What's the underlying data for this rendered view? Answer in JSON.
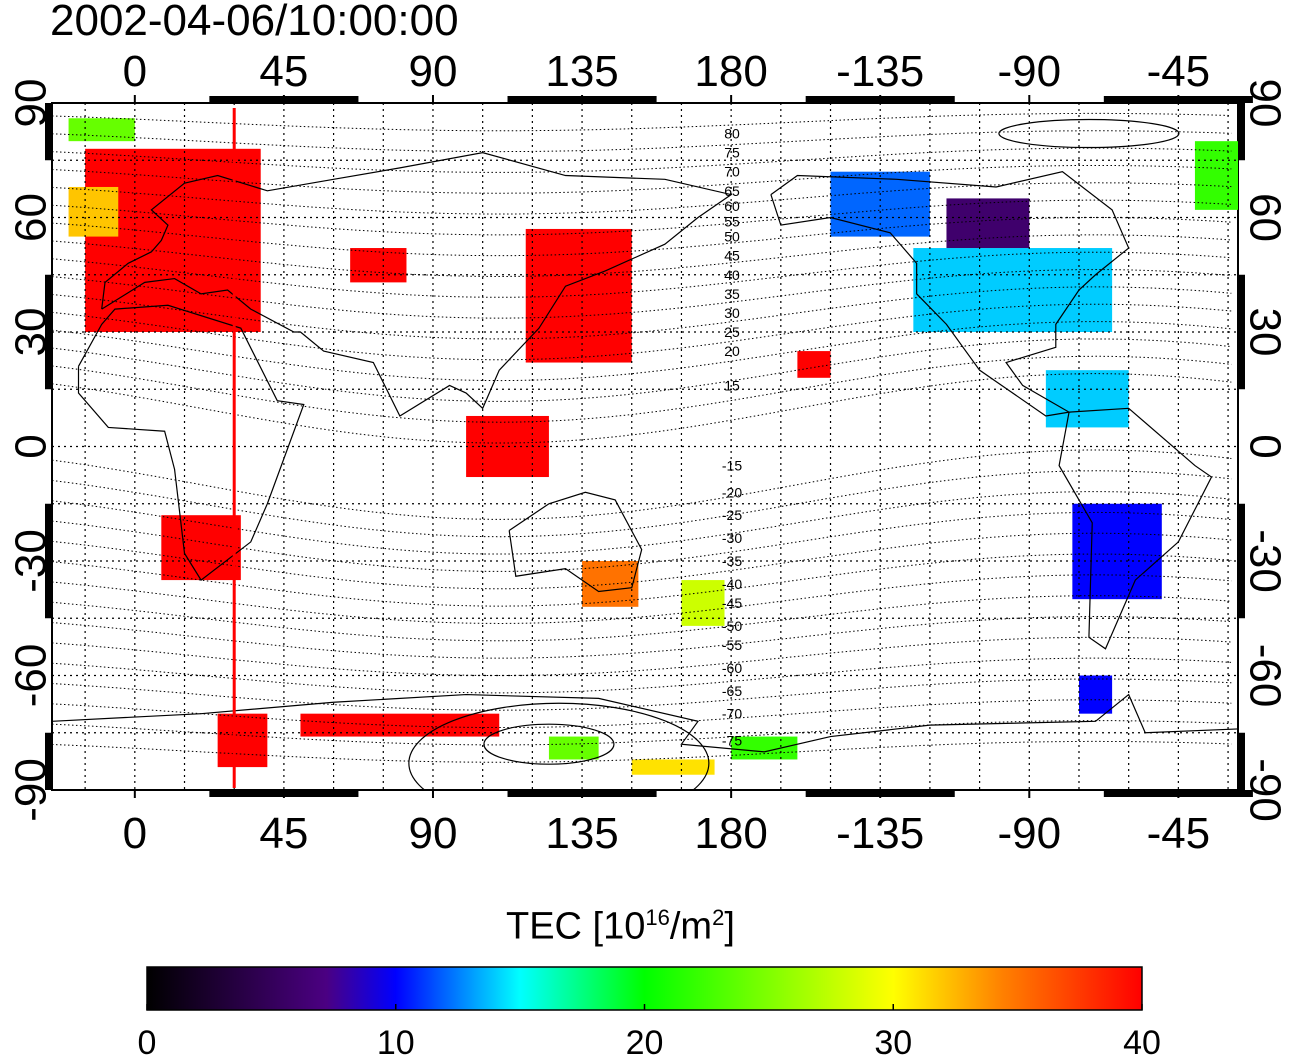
{
  "title": "2002-04-06/10:00:00",
  "map": {
    "lon_ticks": [
      {
        "value": 0,
        "label": "0"
      },
      {
        "value": 45,
        "label": "45"
      },
      {
        "value": 90,
        "label": "90"
      },
      {
        "value": 135,
        "label": "135"
      },
      {
        "value": 180,
        "label": "180"
      },
      {
        "value": 225,
        "label": "-135"
      },
      {
        "value": 270,
        "label": "-90"
      },
      {
        "value": 315,
        "label": "-45"
      }
    ],
    "lat_ticks": [
      {
        "value": 90,
        "label": "90"
      },
      {
        "value": 60,
        "label": "60"
      },
      {
        "value": 30,
        "label": "30"
      },
      {
        "value": 0,
        "label": "0"
      },
      {
        "value": -30,
        "label": "-30"
      },
      {
        "value": -60,
        "label": "-60"
      },
      {
        "value": -90,
        "label": "-90"
      }
    ],
    "lon_range": [
      -25,
      333
    ],
    "lat_range": [
      -90,
      90
    ],
    "grid": "dotted, every 15 degrees",
    "highlighted_meridian": 30,
    "highlight_color": "#ff0000",
    "magnetic_latitude_labels": [
      {
        "label": "80",
        "lat": 82
      },
      {
        "label": "75",
        "lat": 77
      },
      {
        "label": "70",
        "lat": 72
      },
      {
        "label": "65",
        "lat": 67
      },
      {
        "label": "60",
        "lat": 63
      },
      {
        "label": "55",
        "lat": 59
      },
      {
        "label": "50",
        "lat": 55
      },
      {
        "label": "45",
        "lat": 50
      },
      {
        "label": "40",
        "lat": 45
      },
      {
        "label": "35",
        "lat": 40
      },
      {
        "label": "30",
        "lat": 35
      },
      {
        "label": "25",
        "lat": 30
      },
      {
        "label": "20",
        "lat": 25
      },
      {
        "label": "15",
        "lat": 16
      },
      {
        "label": "-15",
        "lat": -5
      },
      {
        "label": "-20",
        "lat": -12
      },
      {
        "label": "-25",
        "lat": -18
      },
      {
        "label": "-30",
        "lat": -24
      },
      {
        "label": "-35",
        "lat": -30
      },
      {
        "label": "-40",
        "lat": -36
      },
      {
        "label": "-45",
        "lat": -41
      },
      {
        "label": "-50",
        "lat": -47
      },
      {
        "label": "-55",
        "lat": -52
      },
      {
        "label": "-60",
        "lat": -58
      },
      {
        "label": "-65",
        "lat": -64
      },
      {
        "label": "-70",
        "lat": -70
      },
      {
        "label": "-75",
        "lat": -77
      }
    ],
    "tec_regions": [
      {
        "lon": [
          -15,
          38
        ],
        "lat": [
          30,
          78
        ],
        "tec": 40
      },
      {
        "lon": [
          -20,
          -5
        ],
        "lat": [
          55,
          68
        ],
        "tec": 32
      },
      {
        "lon": [
          65,
          82
        ],
        "lat": [
          43,
          52
        ],
        "tec": 40
      },
      {
        "lon": [
          118,
          150
        ],
        "lat": [
          22,
          57
        ],
        "tec": 40
      },
      {
        "lon": [
          100,
          125
        ],
        "lat": [
          -8,
          8
        ],
        "tec": 40
      },
      {
        "lon": [
          8,
          32
        ],
        "lat": [
          -35,
          -18
        ],
        "tec": 40
      },
      {
        "lon": [
          135,
          152
        ],
        "lat": [
          -42,
          -30
        ],
        "tec": 35
      },
      {
        "lon": [
          165,
          178
        ],
        "lat": [
          -47,
          -35
        ],
        "tec": 28
      },
      {
        "lon": [
          200,
          210
        ],
        "lat": [
          18,
          25
        ],
        "tec": 40
      },
      {
        "lon": [
          210,
          240
        ],
        "lat": [
          55,
          72
        ],
        "tec": 12
      },
      {
        "lon": [
          235,
          295
        ],
        "lat": [
          30,
          52
        ],
        "tec": 14
      },
      {
        "lon": [
          245,
          270
        ],
        "lat": [
          52,
          65
        ],
        "tec": 6
      },
      {
        "lon": [
          283,
          310
        ],
        "lat": [
          -40,
          -15
        ],
        "tec": 10
      },
      {
        "lon": [
          285,
          295
        ],
        "lat": [
          -70,
          -60
        ],
        "tec": 10
      },
      {
        "lon": [
          275,
          300
        ],
        "lat": [
          5,
          20
        ],
        "tec": 14
      },
      {
        "lon": [
          25,
          40
        ],
        "lat": [
          -84,
          -70
        ],
        "tec": 40
      },
      {
        "lon": [
          50,
          110
        ],
        "lat": [
          -76,
          -70
        ],
        "tec": 40
      },
      {
        "lon": [
          125,
          140
        ],
        "lat": [
          -82,
          -76
        ],
        "tec": 24
      },
      {
        "lon": [
          180,
          200
        ],
        "lat": [
          -82,
          -76
        ],
        "tec": 22
      },
      {
        "lon": [
          150,
          175
        ],
        "lat": [
          -86,
          -82
        ],
        "tec": 31
      },
      {
        "lon": [
          320,
          333
        ],
        "lat": [
          62,
          80
        ],
        "tec": 22
      },
      {
        "lon": [
          -20,
          0
        ],
        "lat": [
          80,
          86
        ],
        "tec": 24
      }
    ]
  },
  "colorbar": {
    "label_main": "TEC  [10",
    "label_exp1": "16",
    "label_mid": "/m",
    "label_exp2": "2",
    "label_end": "]",
    "ticks": [
      "0",
      "10",
      "20",
      "30",
      "40"
    ],
    "range": [
      0,
      40
    ]
  },
  "colors": {
    "stops": [
      "#000000",
      "#4b0082",
      "#0000ff",
      "#00ffff",
      "#00ff00",
      "#ffff00",
      "#ff8000",
      "#ff0000"
    ]
  }
}
